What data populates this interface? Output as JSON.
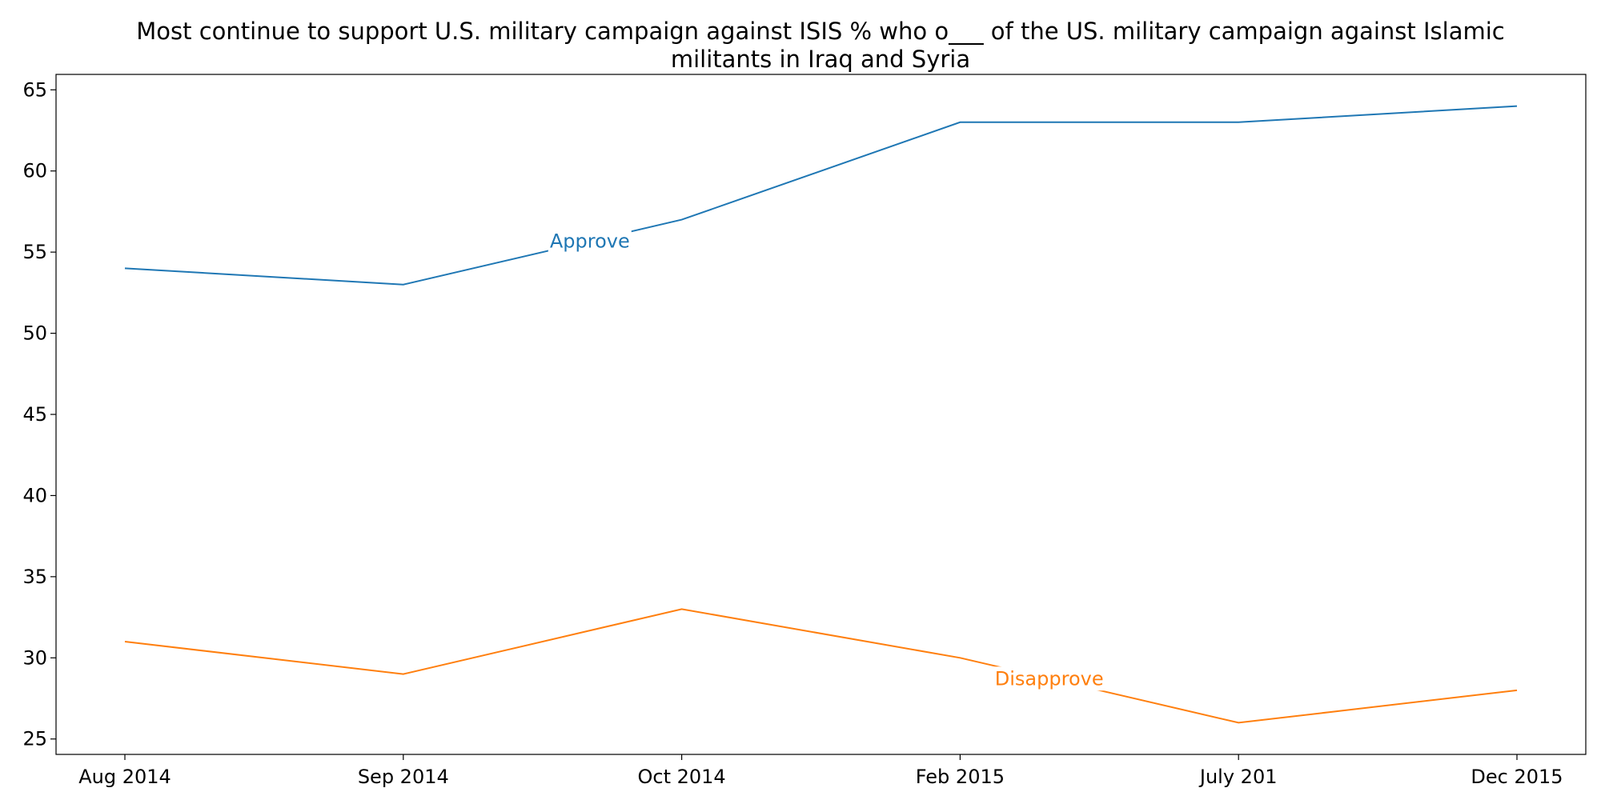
{
  "chart_data": {
    "type": "line",
    "title": "Most continue to support U.S. military campaign against ISIS % who o___ of the US. military campaign against Islamic militants in Iraq and Syria",
    "title_lines": [
      "Most continue to support U.S. military campaign against ISIS % who o___ of the US. military campaign against Islamic",
      "militants in Iraq and Syria"
    ],
    "xlabel": "",
    "ylabel": "",
    "categories": [
      "Aug 2014",
      "Sep 2014",
      "Oct 2014",
      "Feb 2015",
      "July 201",
      "Dec 2015"
    ],
    "series": [
      {
        "name": "Approve",
        "color": "#1f77b4",
        "values": [
          54,
          53,
          57,
          63,
          63,
          64
        ]
      },
      {
        "name": "Disapprove",
        "color": "#ff7f0e",
        "values": [
          31,
          29,
          33,
          30,
          26,
          28
        ]
      }
    ],
    "ylim": [
      24.05,
      65.95
    ],
    "yticks": [
      25,
      30,
      35,
      40,
      45,
      50,
      55,
      60,
      65
    ],
    "grid": false,
    "legend": "none"
  }
}
